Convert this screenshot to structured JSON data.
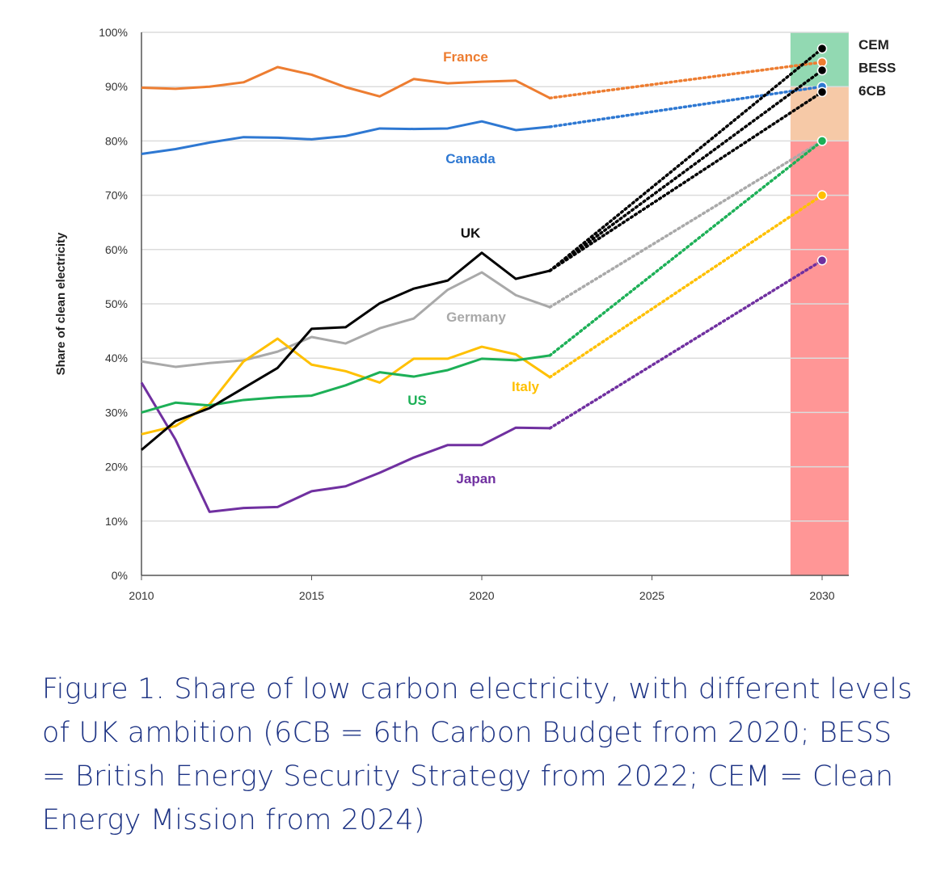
{
  "chart_data": {
    "type": "line",
    "ylabel": "Share of clean electricity",
    "xlabel": "",
    "xlim": [
      2010,
      2030
    ],
    "ylim": [
      0,
      100
    ],
    "x_ticks": [
      2010,
      2015,
      2020,
      2025,
      2030
    ],
    "y_ticks": [
      "0%",
      "10%",
      "20%",
      "30%",
      "40%",
      "50%",
      "60%",
      "70%",
      "80%",
      "90%",
      "100%"
    ],
    "grid": "horizontal",
    "years": [
      2010,
      2011,
      2012,
      2013,
      2014,
      2015,
      2016,
      2017,
      2018,
      2019,
      2020,
      2021,
      2022
    ],
    "series": [
      {
        "name": "France",
        "color": "#ED7D31",
        "values": [
          89.8,
          89.6,
          90.0,
          90.8,
          93.6,
          92.2,
          89.9,
          88.2,
          91.4,
          90.6,
          90.9,
          91.1,
          87.9
        ],
        "target_2030": [
          94.5
        ]
      },
      {
        "name": "Canada",
        "color": "#2E78D2",
        "values": [
          77.6,
          78.5,
          79.7,
          80.7,
          80.6,
          80.3,
          80.9,
          82.3,
          82.2,
          82.3,
          83.6,
          82.0,
          82.6
        ],
        "target_2030": [
          90
        ]
      },
      {
        "name": "UK",
        "color": "#000000",
        "values": [
          23.1,
          28.4,
          30.8,
          34.5,
          38.2,
          45.4,
          45.7,
          50.1,
          52.8,
          54.3,
          59.4,
          54.6,
          56.1
        ],
        "target_2030": [
          97,
          93,
          89
        ]
      },
      {
        "name": "Germany",
        "color": "#A9A9A9",
        "values": [
          39.4,
          38.4,
          39.1,
          39.6,
          41.2,
          43.9,
          42.7,
          45.5,
          47.3,
          52.6,
          55.8,
          51.6,
          49.4
        ],
        "target_2030": [
          80
        ]
      },
      {
        "name": "Italy",
        "color": "#FFC000",
        "values": [
          26.0,
          27.5,
          31.5,
          39.4,
          43.6,
          38.8,
          37.6,
          35.5,
          39.9,
          39.9,
          42.1,
          40.7,
          36.5
        ],
        "target_2030": [
          70
        ]
      },
      {
        "name": "US",
        "color": "#1DB057",
        "values": [
          30.0,
          31.8,
          31.3,
          32.3,
          32.8,
          33.1,
          35.0,
          37.4,
          36.6,
          37.8,
          39.9,
          39.6,
          40.5
        ],
        "target_2030": [
          80
        ]
      },
      {
        "name": "Japan",
        "color": "#7030A0",
        "values": [
          35.5,
          25.0,
          11.7,
          12.4,
          12.6,
          15.5,
          16.4,
          18.9,
          21.7,
          24.0,
          24.0,
          27.2,
          27.1
        ],
        "target_2030": [
          58
        ]
      }
    ],
    "uk_ambition_labels": [
      "CEM",
      "BESS",
      "6CB"
    ],
    "bands_2030": [
      {
        "from": 90,
        "to": 100,
        "color": "#92D9B2"
      },
      {
        "from": 80,
        "to": 90,
        "color": "#F6C9A7"
      },
      {
        "from": 0,
        "to": 80,
        "color": "#FF9696"
      }
    ]
  },
  "caption": "Figure 1. Share of low carbon electricity, with different levels of UK ambition (6CB = 6th Carbon Budget from 2020; BESS = British Energy Security Strategy from 2022; CEM = Clean Energy Mission from 2024)"
}
